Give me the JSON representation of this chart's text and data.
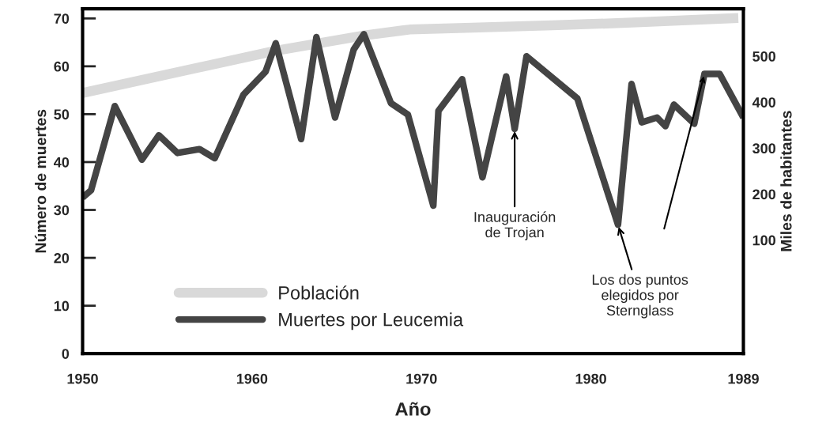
{
  "chart_data": {
    "type": "line",
    "xlabel": "Año",
    "ylabel": "Número de muertes",
    "y2label": "Miles de habitantes",
    "xlim": [
      1950,
      1989
    ],
    "xticks": [
      1950,
      1960,
      1970,
      1980,
      1989
    ],
    "ylim": [
      0,
      72
    ],
    "yticks": [
      0,
      10,
      20,
      30,
      40,
      50,
      60,
      70
    ],
    "y2lim": [
      -147,
      603
    ],
    "y2ticks": [
      100,
      200,
      300,
      400,
      500
    ],
    "grid": false,
    "legend": "bottom left",
    "marker": "none",
    "line_style": "solid",
    "series": [
      {
        "name": "Población",
        "color": "#d9d9d9",
        "axis": "y2",
        "x": [
          1950,
          1961.4,
          1966.6,
          1969.3,
          1973,
          1977.7,
          1982.4,
          1988.7
        ],
        "values": [
          420,
          512,
          545,
          558,
          562,
          567,
          573,
          583
        ]
      },
      {
        "name": "Muertes por Leucemia",
        "color": "#444444",
        "axis": "y",
        "x": [
          1950,
          1950.5,
          1951.9,
          1953.5,
          1954.5,
          1955.6,
          1956.9,
          1957.8,
          1959.5,
          1960.8,
          1961.4,
          1962.9,
          1963.8,
          1964.9,
          1966,
          1966.6,
          1968.2,
          1969.2,
          1970.7,
          1971,
          1972.4,
          1973.6,
          1975,
          1975.5,
          1976.2,
          1979.2,
          1981.6,
          1982.4,
          1983,
          1983.9,
          1984.4,
          1984.9,
          1986.1,
          1986.7,
          1987.6,
          1989
        ],
        "values": [
          32.6,
          34.1,
          51.7,
          40.5,
          45.6,
          41.9,
          42.7,
          40.8,
          54.1,
          58.9,
          64.8,
          44.8,
          66.1,
          49.3,
          63.5,
          66.7,
          52.3,
          49.9,
          30.9,
          50.7,
          57.3,
          36.8,
          57.9,
          46.9,
          62.1,
          53.3,
          26.9,
          56.3,
          48.3,
          49.3,
          47.5,
          52,
          48,
          58.4,
          58.4,
          49.3
        ]
      }
    ],
    "annotations": [
      {
        "text": "Inauguración\nde Trojan",
        "x": 1975.5,
        "y": 46.9
      },
      {
        "text": "Los dos puntos\nelegidos por\nSternglass",
        "x": 1981.6,
        "y": 26.9
      }
    ]
  }
}
